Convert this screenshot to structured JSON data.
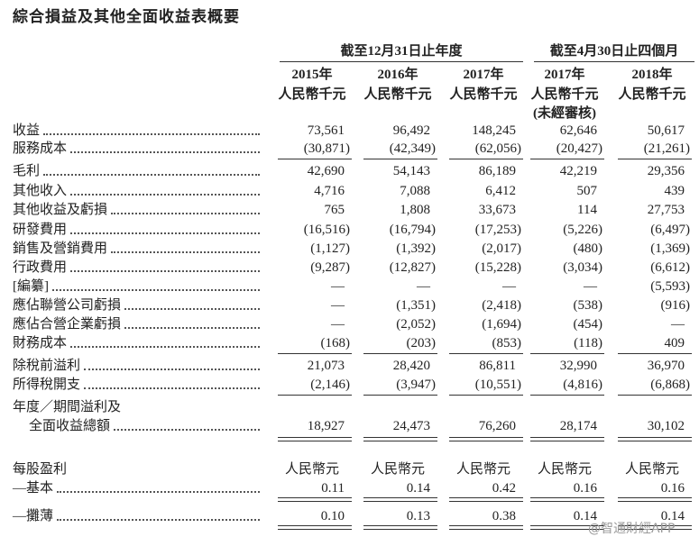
{
  "title": "綜合損益及其他全面收益表概要",
  "header": {
    "groups": [
      "截至12月31日止年度",
      "截至4月30日止四個月"
    ],
    "years": [
      "2015年",
      "2016年",
      "2017年",
      "2017年",
      "2018年"
    ],
    "units": [
      "人民幣千元",
      "人民幣千元",
      "人民幣千元",
      "人民幣千元",
      "人民幣千元"
    ],
    "note": "(未經審核)"
  },
  "rows": [
    {
      "label": "收益",
      "values": [
        "73,561",
        "96,492",
        "148,245",
        "62,646",
        "50,617"
      ]
    },
    {
      "label": "服務成本",
      "values": [
        "(30,871)",
        "(42,349)",
        "(62,056)",
        "(20,427)",
        "(21,261)"
      ]
    },
    {
      "label": "毛利",
      "values": [
        "42,690",
        "54,143",
        "86,189",
        "42,219",
        "29,356"
      ]
    },
    {
      "label": "其他收入",
      "values": [
        "4,716",
        "7,088",
        "6,412",
        "507",
        "439"
      ]
    },
    {
      "label": "其他收益及虧損",
      "values": [
        "765",
        "1,808",
        "33,673",
        "114",
        "27,753"
      ]
    },
    {
      "label": "研發費用",
      "values": [
        "(16,516)",
        "(16,794)",
        "(17,253)",
        "(5,226)",
        "(6,497)"
      ]
    },
    {
      "label": "銷售及營銷費用",
      "values": [
        "(1,127)",
        "(1,392)",
        "(2,017)",
        "(480)",
        "(1,369)"
      ]
    },
    {
      "label": "行政費用",
      "values": [
        "(9,287)",
        "(12,827)",
        "(15,228)",
        "(3,034)",
        "(6,612)"
      ]
    },
    {
      "label": "[編纂]",
      "values": [
        "—",
        "—",
        "—",
        "—",
        "(5,593)"
      ]
    },
    {
      "label": "應佔聯營公司虧損",
      "values": [
        "—",
        "(1,351)",
        "(2,418)",
        "(538)",
        "(916)"
      ]
    },
    {
      "label": "應佔合營企業虧損",
      "values": [
        "—",
        "(2,052)",
        "(1,694)",
        "(454)",
        "—"
      ]
    },
    {
      "label": "財務成本",
      "values": [
        "(168)",
        "(203)",
        "(853)",
        "(118)",
        "409"
      ]
    },
    {
      "label": "除稅前溢利",
      "values": [
        "21,073",
        "28,420",
        "86,811",
        "32,990",
        "36,970"
      ]
    },
    {
      "label": "所得稅開支",
      "values": [
        "(2,146)",
        "(3,947)",
        "(10,551)",
        "(4,816)",
        "(6,868)"
      ]
    },
    {
      "label": "年度／期間溢利及"
    },
    {
      "label": "全面收益總額",
      "values": [
        "18,927",
        "24,473",
        "76,260",
        "28,174",
        "30,102"
      ]
    },
    {
      "label": "每股盈利",
      "values": [
        "人民幣元",
        "人民幣元",
        "人民幣元",
        "人民幣元",
        "人民幣元"
      ]
    },
    {
      "label": "—基本",
      "values": [
        "0.11",
        "0.14",
        "0.42",
        "0.16",
        "0.16"
      ]
    },
    {
      "label": "—攤薄",
      "values": [
        "0.10",
        "0.13",
        "0.38",
        "0.14",
        "0.14"
      ]
    }
  ],
  "watermark": "@智通財經APP"
}
